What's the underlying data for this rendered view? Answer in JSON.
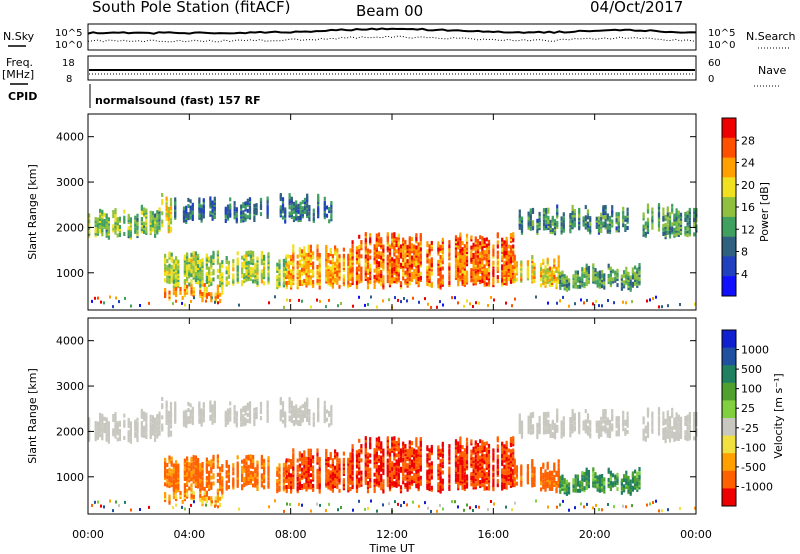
{
  "header": {
    "station": "South Pole Station (fitACF)",
    "beam": "Beam 00",
    "date": "04/Oct/2017"
  },
  "strip_panels": {
    "nsky_label": "N.Sky",
    "nsearch_label": "N.Search",
    "left_ticks": [
      "10^5",
      "10^0"
    ],
    "right_ticks": [
      "10^5",
      "10^0"
    ],
    "freq_label": "Freq.",
    "freq_unit": "[MHz]",
    "freq_ticks": [
      "18",
      "8"
    ],
    "nave_label": "Nave",
    "nave_ticks": [
      "60",
      "0"
    ],
    "cpid_label": "CPID",
    "cpid_text": "normalsound (fast) 157 RF"
  },
  "axes": {
    "ylabel": "Slant Range [km]",
    "xlabel": "Time UT",
    "y_ticks": [
      "4000",
      "3000",
      "2000",
      "1000"
    ],
    "x_ticks": [
      "00:00",
      "04:00",
      "08:00",
      "12:00",
      "16:00",
      "20:00",
      "00:00"
    ]
  },
  "colorbars": {
    "power": {
      "label": "Power [dB]",
      "ticks": [
        "28",
        "24",
        "20",
        "16",
        "12",
        "8",
        "4"
      ],
      "colors": [
        "#ee0000",
        "#ff5000",
        "#ffa000",
        "#f0e020",
        "#90c040",
        "#40a060",
        "#306080",
        "#2040c0",
        "#1010ff"
      ]
    },
    "velocity": {
      "label": "Velocity [m s⁻¹]",
      "ticks": [
        "1000",
        "500",
        "100",
        "25",
        "-25",
        "-100",
        "-500",
        "-1000"
      ],
      "colors": [
        "#1020d0",
        "#2050a0",
        "#208060",
        "#50a030",
        "#80d040",
        "#c8c8c0",
        "#f0e040",
        "#ffa000",
        "#ff6000",
        "#ee0000"
      ]
    }
  },
  "chart_data": {
    "type": "heatmap",
    "x_range_hours": [
      0,
      24
    ],
    "y_range_km": [
      180,
      4500
    ],
    "bands": [
      {
        "name": "",
        "t0": 0.0,
        "t1": 2.8,
        "r0": 1800,
        "r1": 2300,
        "power": 14,
        "velocity": 0
      },
      {
        "name": "",
        "t0": 2.8,
        "t1": 3.4,
        "r0": 1900,
        "r1": 2600,
        "power": 18,
        "velocity": 0
      },
      {
        "name": "",
        "t0": 3.4,
        "t1": 9.6,
        "r0": 2150,
        "r1": 2550,
        "power": 8,
        "velocity": 0
      },
      {
        "name": "",
        "t0": 3.0,
        "t1": 5.3,
        "r0": 400,
        "r1": 600,
        "power": 22,
        "velocity": -80
      },
      {
        "name": "",
        "t0": 3.0,
        "t1": 7.8,
        "r0": 700,
        "r1": 1300,
        "power": 16,
        "velocity": -150
      },
      {
        "name": "",
        "t0": 7.8,
        "t1": 10.4,
        "r0": 700,
        "r1": 1500,
        "power": 22,
        "velocity": -400
      },
      {
        "name": "",
        "t0": 10.4,
        "t1": 16.8,
        "r0": 700,
        "r1": 1700,
        "power": 25,
        "velocity": -500
      },
      {
        "name": "",
        "t0": 16.8,
        "t1": 18.6,
        "r0": 700,
        "r1": 1200,
        "power": 20,
        "velocity": -200
      },
      {
        "name": "",
        "t0": 18.6,
        "t1": 21.8,
        "r0": 650,
        "r1": 1000,
        "power": 12,
        "velocity": 100
      },
      {
        "name": "",
        "t0": 21.8,
        "t1": 24.0,
        "r0": 1800,
        "r1": 2350,
        "power": 12,
        "velocity": 0
      },
      {
        "name": "",
        "t0": 17.0,
        "t1": 21.5,
        "r0": 1900,
        "r1": 2300,
        "power": 10,
        "velocity": 0
      }
    ]
  }
}
